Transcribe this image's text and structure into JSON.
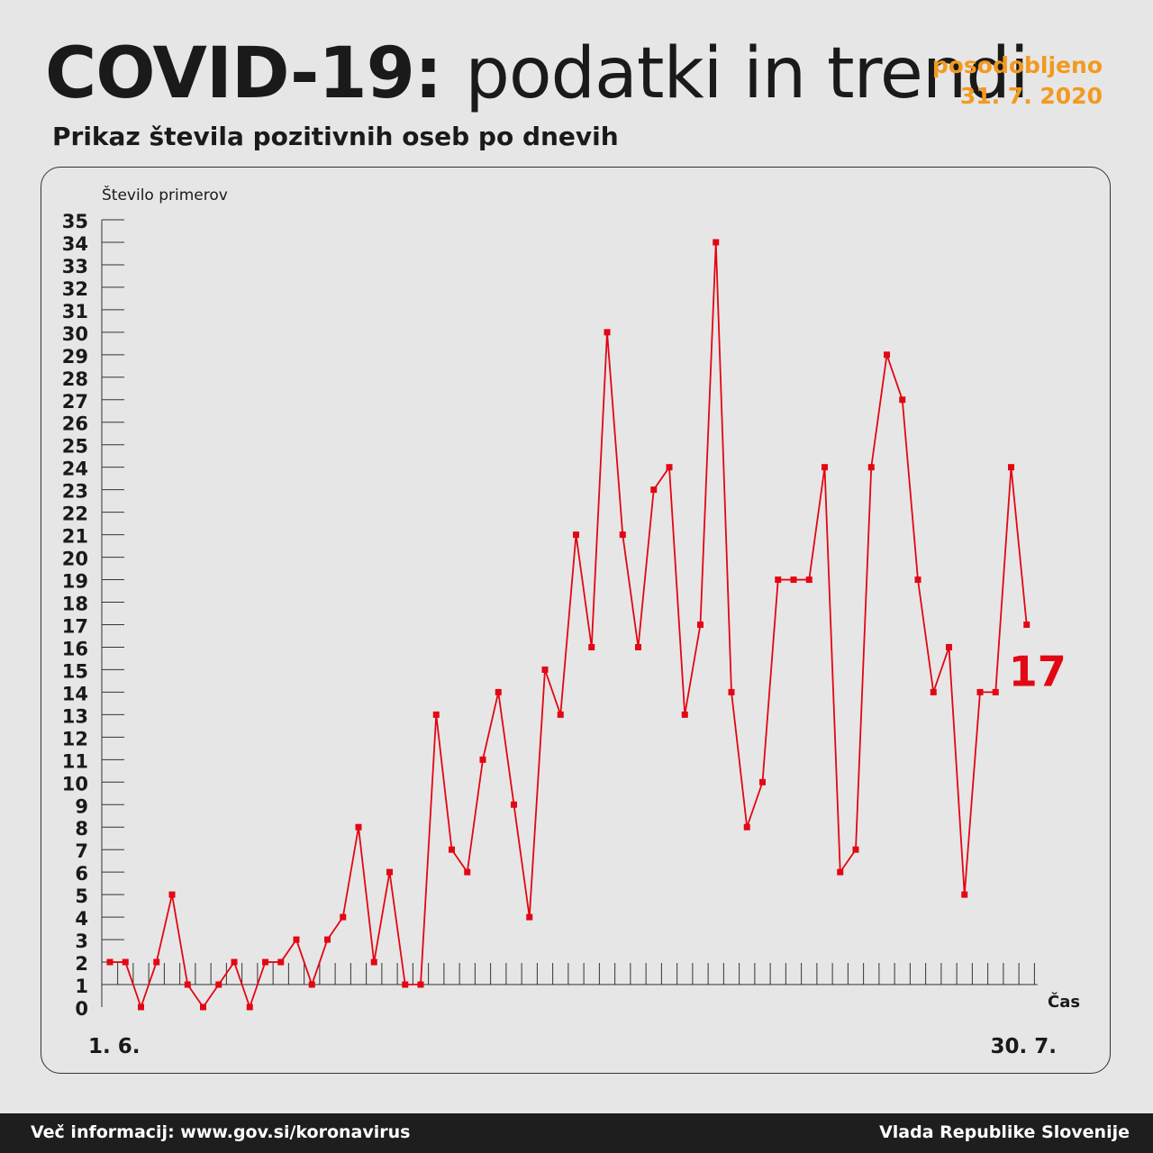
{
  "header": {
    "title_bold": "COVID-19:",
    "title_light": "podatki in trendi",
    "updated_label": "posodobljeno",
    "updated_date": "31. 7. 2020",
    "subtitle": "Prikaz števila pozitivnih oseb po dnevih"
  },
  "footer": {
    "info": "Več informacij: www.gov.si/koronavirus",
    "org": "Vlada Republike Slovenije"
  },
  "colors": {
    "line": "#e30613",
    "accent": "#f29a1f",
    "text": "#1a1a1a",
    "background": "#e6e6e6"
  },
  "chart_data": {
    "type": "line",
    "title": "Prikaz števila pozitivnih oseb po dnevih",
    "ylabel": "Število primerov",
    "xlabel": "Čas",
    "ylim": [
      0,
      35
    ],
    "x_start_label": "1. 6.",
    "x_end_label": "30. 7.",
    "last_value_label": "17",
    "grid": false,
    "series": [
      {
        "values": [
          2,
          2,
          0,
          2,
          5,
          1,
          0,
          1,
          2,
          0,
          2,
          2,
          3,
          1,
          3,
          4,
          8,
          2,
          6,
          1,
          1,
          13,
          7,
          6,
          11,
          14,
          9,
          4,
          15,
          13,
          21,
          16,
          30,
          21,
          16,
          23,
          24,
          13,
          17,
          34,
          14,
          8,
          10,
          19,
          19,
          19,
          24,
          6,
          7,
          24,
          29,
          27,
          19,
          14,
          16,
          5,
          14,
          14,
          24,
          17
        ]
      }
    ]
  }
}
